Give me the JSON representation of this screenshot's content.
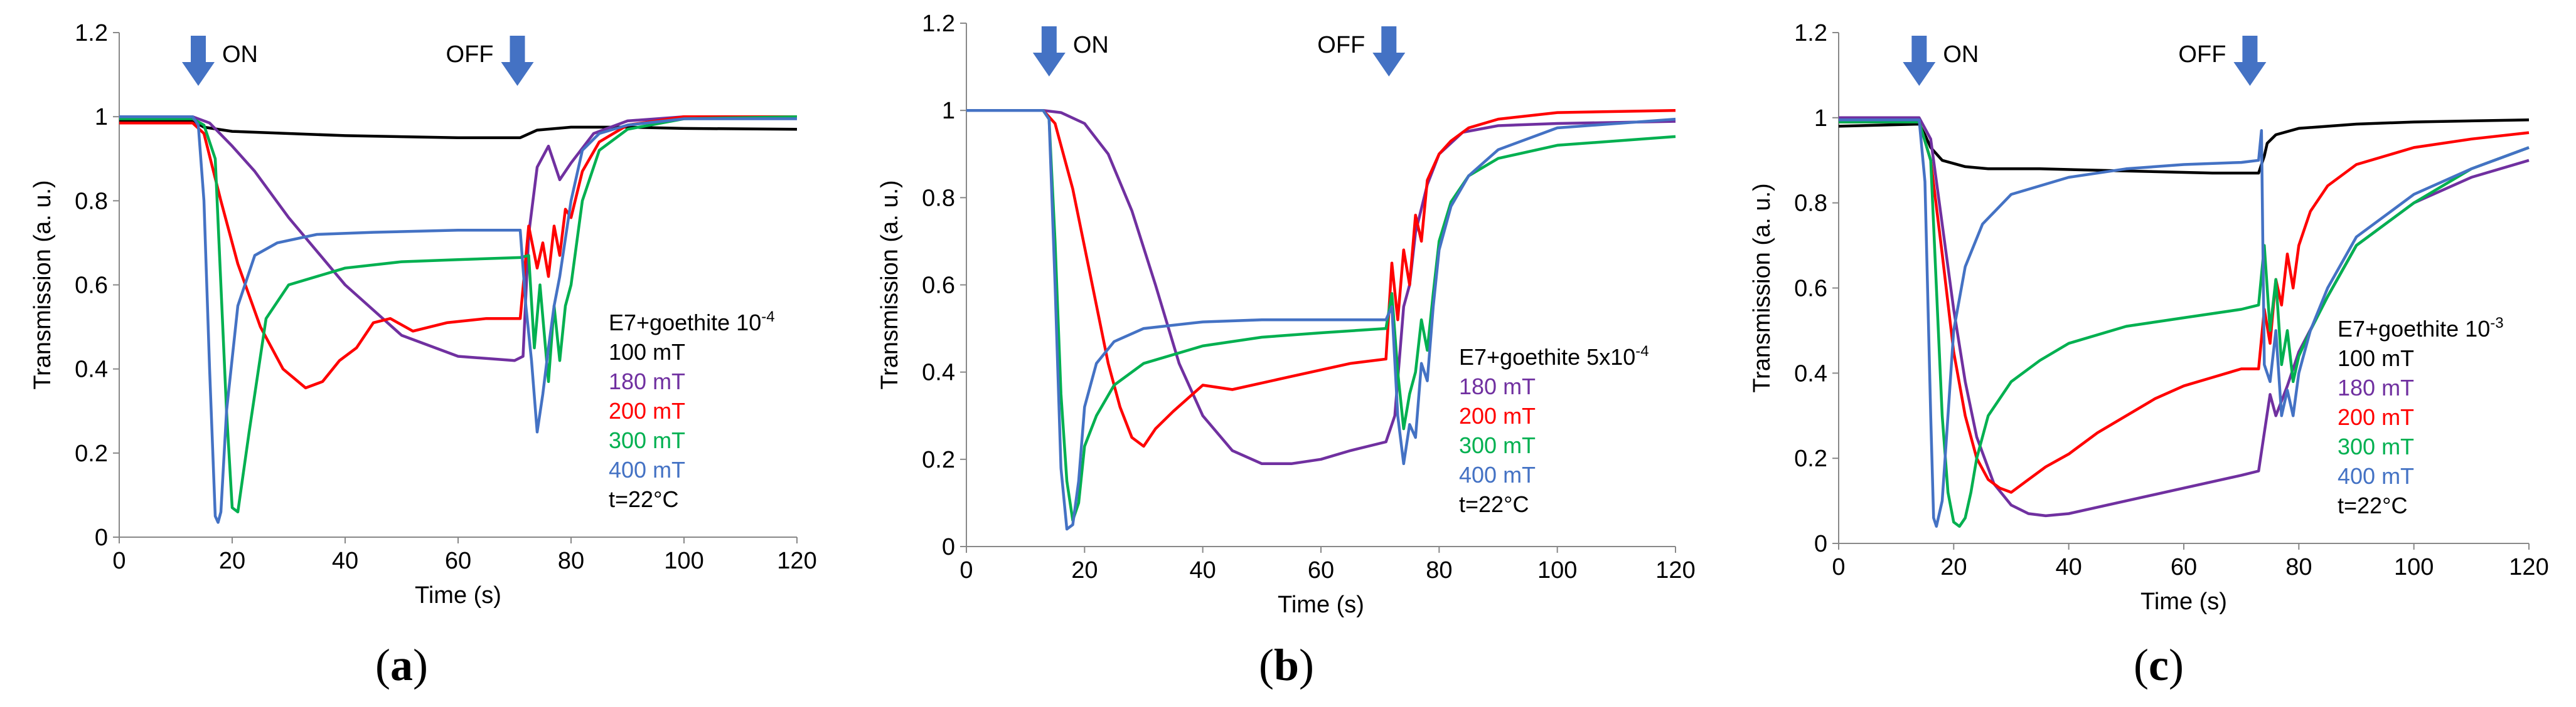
{
  "colors": {
    "100 mT": "#000000",
    "180 mT": "#7030A0",
    "200 mT": "#FF0000",
    "300 mT": "#00B050",
    "400 mT": "#4472C4",
    "arrow": "#4472C4"
  },
  "chart_data": [
    {
      "type": "line",
      "caption": "a",
      "xlabel": "Time (s)",
      "ylabel": "Transmission (a. u.)",
      "xlim": [
        0,
        120
      ],
      "ylim": [
        0,
        1.2
      ],
      "xticks": [
        0,
        20,
        40,
        60,
        80,
        100,
        120
      ],
      "yticks": [
        0,
        0.2,
        0.4,
        0.6,
        0.8,
        1,
        1.2
      ],
      "ytick_labels": [
        "0",
        "0.2",
        "0.4",
        "0.6",
        "0.8",
        "1",
        "1.2"
      ],
      "grid": false,
      "legend_position": "right",
      "annotations": [
        {
          "text": "ON",
          "x": 14,
          "arrow": true
        },
        {
          "text": "OFF",
          "x": 70.5,
          "arrow": true
        }
      ],
      "legend_title": [
        "E7+goethite 10",
        "-4"
      ],
      "legend_items": [
        "100 mT",
        "180 mT",
        "200 mT",
        "300 mT",
        "400 mT"
      ],
      "temperature": "t=22°C",
      "series": [
        {
          "name": "100 mT",
          "x": [
            0,
            13,
            15,
            20,
            40,
            60,
            71,
            74,
            80,
            90,
            100,
            120
          ],
          "y": [
            0.99,
            0.99,
            0.975,
            0.965,
            0.955,
            0.95,
            0.95,
            0.968,
            0.975,
            0.975,
            0.972,
            0.97
          ]
        },
        {
          "name": "180 mT",
          "x": [
            0,
            13,
            16,
            20,
            24,
            30,
            40,
            50,
            60,
            70,
            71.5,
            72.5,
            74,
            76,
            78,
            80,
            84,
            90,
            100,
            120
          ],
          "y": [
            1.0,
            1.0,
            0.985,
            0.93,
            0.87,
            0.76,
            0.6,
            0.48,
            0.43,
            0.42,
            0.43,
            0.72,
            0.88,
            0.93,
            0.85,
            0.89,
            0.96,
            0.99,
            1.0,
            1.0
          ]
        },
        {
          "name": "200 mT",
          "x": [
            0,
            13,
            15,
            18,
            21,
            25,
            29,
            33,
            36,
            39,
            42,
            45,
            48,
            52,
            58,
            65,
            71,
            72.5,
            74,
            75,
            76,
            77,
            78,
            79,
            80,
            82,
            85,
            90,
            100,
            120
          ],
          "y": [
            0.985,
            0.985,
            0.96,
            0.8,
            0.65,
            0.5,
            0.4,
            0.355,
            0.37,
            0.42,
            0.45,
            0.51,
            0.52,
            0.49,
            0.51,
            0.52,
            0.52,
            0.74,
            0.64,
            0.7,
            0.62,
            0.74,
            0.67,
            0.78,
            0.76,
            0.87,
            0.94,
            0.98,
            1.0,
            1.0
          ]
        },
        {
          "name": "300 mT",
          "x": [
            0,
            13,
            15,
            17,
            19,
            20,
            21,
            23,
            26,
            30,
            40,
            50,
            60,
            71,
            72.5,
            73.5,
            74.5,
            76,
            77,
            78,
            79,
            80,
            82,
            85,
            90,
            100,
            120
          ],
          "y": [
            0.995,
            0.995,
            0.98,
            0.9,
            0.3,
            0.07,
            0.06,
            0.25,
            0.52,
            0.6,
            0.64,
            0.655,
            0.66,
            0.665,
            0.67,
            0.45,
            0.6,
            0.37,
            0.55,
            0.42,
            0.55,
            0.6,
            0.8,
            0.92,
            0.97,
            0.995,
            1.0
          ]
        },
        {
          "name": "400 mT",
          "x": [
            0,
            13,
            14,
            15,
            16,
            17,
            17.5,
            18,
            19,
            21,
            24,
            28,
            35,
            45,
            60,
            71,
            72,
            73,
            74,
            75,
            76,
            77,
            78,
            80,
            82,
            85,
            90,
            100,
            120
          ],
          "y": [
            1.0,
            1.0,
            0.98,
            0.8,
            0.4,
            0.05,
            0.035,
            0.06,
            0.3,
            0.55,
            0.67,
            0.7,
            0.72,
            0.725,
            0.73,
            0.73,
            0.55,
            0.42,
            0.25,
            0.34,
            0.45,
            0.55,
            0.62,
            0.8,
            0.92,
            0.96,
            0.98,
            0.995,
            0.995
          ]
        }
      ]
    },
    {
      "type": "line",
      "caption": "b",
      "xlabel": "Time (s)",
      "ylabel": "Transmission (a. u.)",
      "xlim": [
        0,
        120
      ],
      "ylim": [
        0,
        1.2
      ],
      "xticks": [
        0,
        20,
        40,
        60,
        80,
        100,
        120
      ],
      "yticks": [
        0,
        0.2,
        0.4,
        0.6,
        0.8,
        1,
        1.2
      ],
      "ytick_labels": [
        "0",
        "0.2",
        "0.4",
        "0.6",
        "0.8",
        "1",
        "1.2"
      ],
      "grid": false,
      "legend_position": "right",
      "annotations": [
        {
          "text": "ON",
          "x": 14,
          "arrow": true
        },
        {
          "text": "OFF",
          "x": 71.5,
          "arrow": true
        }
      ],
      "legend_title": [
        "E7+goethite 5x10",
        "-4"
      ],
      "legend_items": [
        "180 mT",
        "200 mT",
        "300 mT",
        "400 mT"
      ],
      "temperature": "t=22°C",
      "series": [
        {
          "name": "180 mT",
          "x": [
            0,
            13,
            16,
            20,
            24,
            28,
            32,
            36,
            40,
            45,
            50,
            55,
            60,
            65,
            71,
            72.5,
            74,
            75,
            76,
            78,
            80,
            84,
            90,
            100,
            120
          ],
          "y": [
            1.0,
            1.0,
            0.995,
            0.97,
            0.9,
            0.77,
            0.6,
            0.42,
            0.3,
            0.22,
            0.19,
            0.19,
            0.2,
            0.22,
            0.24,
            0.3,
            0.55,
            0.6,
            0.72,
            0.83,
            0.9,
            0.95,
            0.965,
            0.97,
            0.975
          ]
        },
        {
          "name": "200 mT",
          "x": [
            0,
            13,
            15,
            18,
            21,
            24,
            26,
            28,
            30,
            32,
            35,
            40,
            45,
            55,
            65,
            71,
            72,
            73,
            74,
            75,
            76,
            77,
            78,
            80,
            82,
            85,
            90,
            100,
            120
          ],
          "y": [
            1.0,
            1.0,
            0.97,
            0.82,
            0.62,
            0.42,
            0.32,
            0.25,
            0.23,
            0.27,
            0.31,
            0.37,
            0.36,
            0.39,
            0.42,
            0.43,
            0.65,
            0.52,
            0.68,
            0.6,
            0.76,
            0.7,
            0.84,
            0.9,
            0.93,
            0.96,
            0.98,
            0.995,
            1.0
          ]
        },
        {
          "name": "300 mT",
          "x": [
            0,
            13,
            14,
            15,
            16,
            17,
            18,
            19,
            20,
            22,
            25,
            30,
            40,
            50,
            60,
            71,
            72,
            73,
            74,
            75,
            76,
            77,
            78,
            79,
            80,
            82,
            85,
            90,
            100,
            120
          ],
          "y": [
            1.0,
            1.0,
            0.98,
            0.7,
            0.35,
            0.15,
            0.06,
            0.1,
            0.23,
            0.3,
            0.37,
            0.42,
            0.46,
            0.48,
            0.49,
            0.5,
            0.58,
            0.4,
            0.27,
            0.35,
            0.4,
            0.52,
            0.45,
            0.58,
            0.7,
            0.79,
            0.85,
            0.89,
            0.92,
            0.94
          ]
        },
        {
          "name": "400 mT",
          "x": [
            0,
            13,
            14,
            15,
            16,
            17,
            18,
            19,
            20,
            22,
            25,
            30,
            40,
            50,
            60,
            71,
            72,
            73,
            74,
            75,
            76,
            77,
            78,
            79,
            80,
            82,
            85,
            90,
            100,
            120
          ],
          "y": [
            1.0,
            1.0,
            0.98,
            0.6,
            0.18,
            0.04,
            0.05,
            0.15,
            0.32,
            0.42,
            0.47,
            0.5,
            0.515,
            0.52,
            0.52,
            0.52,
            0.55,
            0.3,
            0.19,
            0.28,
            0.25,
            0.42,
            0.38,
            0.55,
            0.68,
            0.78,
            0.85,
            0.91,
            0.96,
            0.98
          ]
        }
      ]
    },
    {
      "type": "line",
      "caption": "c",
      "xlabel": "Time (s)",
      "ylabel": "Transmission (a. u.)",
      "xlim": [
        0,
        120
      ],
      "ylim": [
        0,
        1.2
      ],
      "xticks": [
        0,
        20,
        40,
        60,
        80,
        100,
        120
      ],
      "yticks": [
        0,
        0.2,
        0.4,
        0.6,
        0.8,
        1,
        1.2
      ],
      "ytick_labels": [
        "0",
        "0.2",
        "0.4",
        "0.6",
        "0.8",
        "1",
        "1.2"
      ],
      "grid": false,
      "legend_position": "right",
      "annotations": [
        {
          "text": "ON",
          "x": 14,
          "arrow": true
        },
        {
          "text": "OFF",
          "x": 71.5,
          "arrow": true
        }
      ],
      "legend_title": [
        "E7+goethite 10",
        "-3"
      ],
      "legend_items": [
        "100 mT",
        "180 mT",
        "200 mT",
        "300 mT",
        "400 mT"
      ],
      "temperature": "t=22°C",
      "series": [
        {
          "name": "100 mT",
          "x": [
            0,
            14,
            15,
            16,
            18,
            22,
            26,
            35,
            50,
            65,
            73,
            74,
            74.5,
            76,
            80,
            90,
            100,
            120
          ],
          "y": [
            0.98,
            0.985,
            0.96,
            0.93,
            0.9,
            0.885,
            0.88,
            0.88,
            0.875,
            0.87,
            0.87,
            0.91,
            0.94,
            0.96,
            0.975,
            0.985,
            0.99,
            0.995
          ]
        },
        {
          "name": "180 mT",
          "x": [
            0,
            14,
            16,
            18,
            20,
            22,
            24,
            27,
            30,
            33,
            36,
            40,
            50,
            60,
            70,
            73,
            74,
            75,
            76,
            78,
            80,
            85,
            90,
            100,
            110,
            120
          ],
          "y": [
            1.0,
            1.0,
            0.95,
            0.75,
            0.55,
            0.38,
            0.25,
            0.14,
            0.09,
            0.07,
            0.065,
            0.07,
            0.1,
            0.13,
            0.16,
            0.17,
            0.26,
            0.35,
            0.3,
            0.37,
            0.45,
            0.58,
            0.7,
            0.8,
            0.86,
            0.9
          ]
        },
        {
          "name": "200 mT",
          "x": [
            0,
            14,
            16,
            18,
            20,
            22,
            24,
            26,
            28,
            30,
            33,
            36,
            40,
            45,
            50,
            55,
            60,
            65,
            70,
            73,
            74,
            75,
            76,
            77,
            78,
            79,
            80,
            82,
            85,
            90,
            100,
            110,
            120
          ],
          "y": [
            0.99,
            0.99,
            0.9,
            0.68,
            0.45,
            0.3,
            0.2,
            0.15,
            0.13,
            0.12,
            0.15,
            0.18,
            0.21,
            0.26,
            0.3,
            0.34,
            0.37,
            0.39,
            0.41,
            0.41,
            0.55,
            0.47,
            0.62,
            0.56,
            0.68,
            0.6,
            0.7,
            0.78,
            0.84,
            0.89,
            0.93,
            0.95,
            0.965
          ]
        },
        {
          "name": "300 mT",
          "x": [
            0,
            14,
            16,
            17,
            18,
            19,
            20,
            21,
            22,
            23,
            24,
            26,
            30,
            35,
            40,
            50,
            60,
            70,
            73,
            74,
            75,
            76,
            77,
            78,
            79,
            80,
            82,
            85,
            90,
            100,
            110,
            120
          ],
          "y": [
            0.99,
            0.99,
            0.9,
            0.6,
            0.3,
            0.12,
            0.05,
            0.04,
            0.06,
            0.12,
            0.2,
            0.3,
            0.38,
            0.43,
            0.47,
            0.51,
            0.53,
            0.55,
            0.56,
            0.7,
            0.5,
            0.62,
            0.42,
            0.5,
            0.38,
            0.44,
            0.5,
            0.58,
            0.7,
            0.8,
            0.88,
            0.93
          ]
        },
        {
          "name": "400 mT",
          "x": [
            0,
            14,
            15,
            16,
            16.5,
            17,
            18,
            19,
            20,
            22,
            25,
            30,
            40,
            50,
            60,
            70,
            73,
            73.5,
            74,
            75,
            76,
            77,
            78,
            79,
            80,
            82,
            85,
            90,
            100,
            110,
            120
          ],
          "y": [
            0.995,
            0.995,
            0.85,
            0.3,
            0.06,
            0.04,
            0.1,
            0.3,
            0.5,
            0.65,
            0.75,
            0.82,
            0.86,
            0.88,
            0.89,
            0.895,
            0.9,
            0.97,
            0.42,
            0.38,
            0.5,
            0.3,
            0.36,
            0.3,
            0.4,
            0.5,
            0.6,
            0.72,
            0.82,
            0.88,
            0.93
          ]
        }
      ]
    }
  ]
}
